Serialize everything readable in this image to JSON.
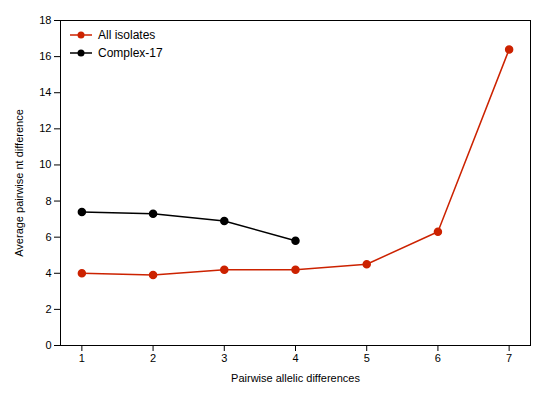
{
  "chart_data": {
    "type": "line",
    "xlabel": "Pairwise allelic differences",
    "ylabel": "Average pairwise nt difference",
    "x": [
      1,
      2,
      3,
      4,
      5,
      6,
      7
    ],
    "series": [
      {
        "name": "All isolates",
        "color": "#cc2200",
        "values": [
          4.0,
          3.9,
          4.2,
          4.2,
          4.5,
          6.3,
          16.4
        ]
      },
      {
        "name": "Complex-17",
        "color": "#000000",
        "values": [
          7.4,
          7.3,
          6.9,
          5.8,
          null,
          null,
          null
        ]
      }
    ],
    "marker": "circle",
    "xlim": [
      0.7,
      7.3
    ],
    "ylim": [
      0,
      18
    ],
    "xticks": [
      1,
      2,
      3,
      4,
      5,
      6,
      7
    ],
    "yticks": [
      0,
      2,
      4,
      6,
      8,
      10,
      12,
      14,
      16,
      18
    ],
    "grid": false,
    "legend": "upper left"
  }
}
